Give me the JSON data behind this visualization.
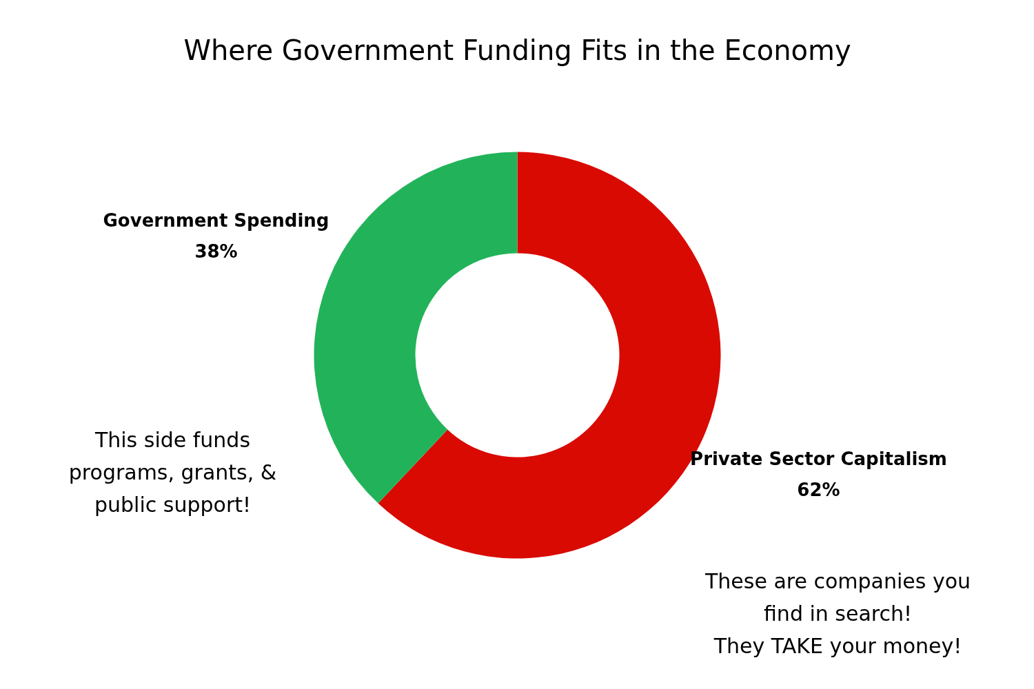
{
  "chart_data": {
    "type": "donut",
    "title": "Where Government Funding Fits in the Economy",
    "categories": [
      "Private Sector Capitalism",
      "Government Spending"
    ],
    "values": [
      62,
      38
    ],
    "colors": [
      "#d90a02",
      "#22b35a"
    ],
    "value_labels": [
      "62%",
      "38%"
    ],
    "annotations": [
      "This side funds\nprograms, grants, &\npublic support!",
      "These are companies you\nfind in search!\nThey TAKE your money!"
    ]
  }
}
